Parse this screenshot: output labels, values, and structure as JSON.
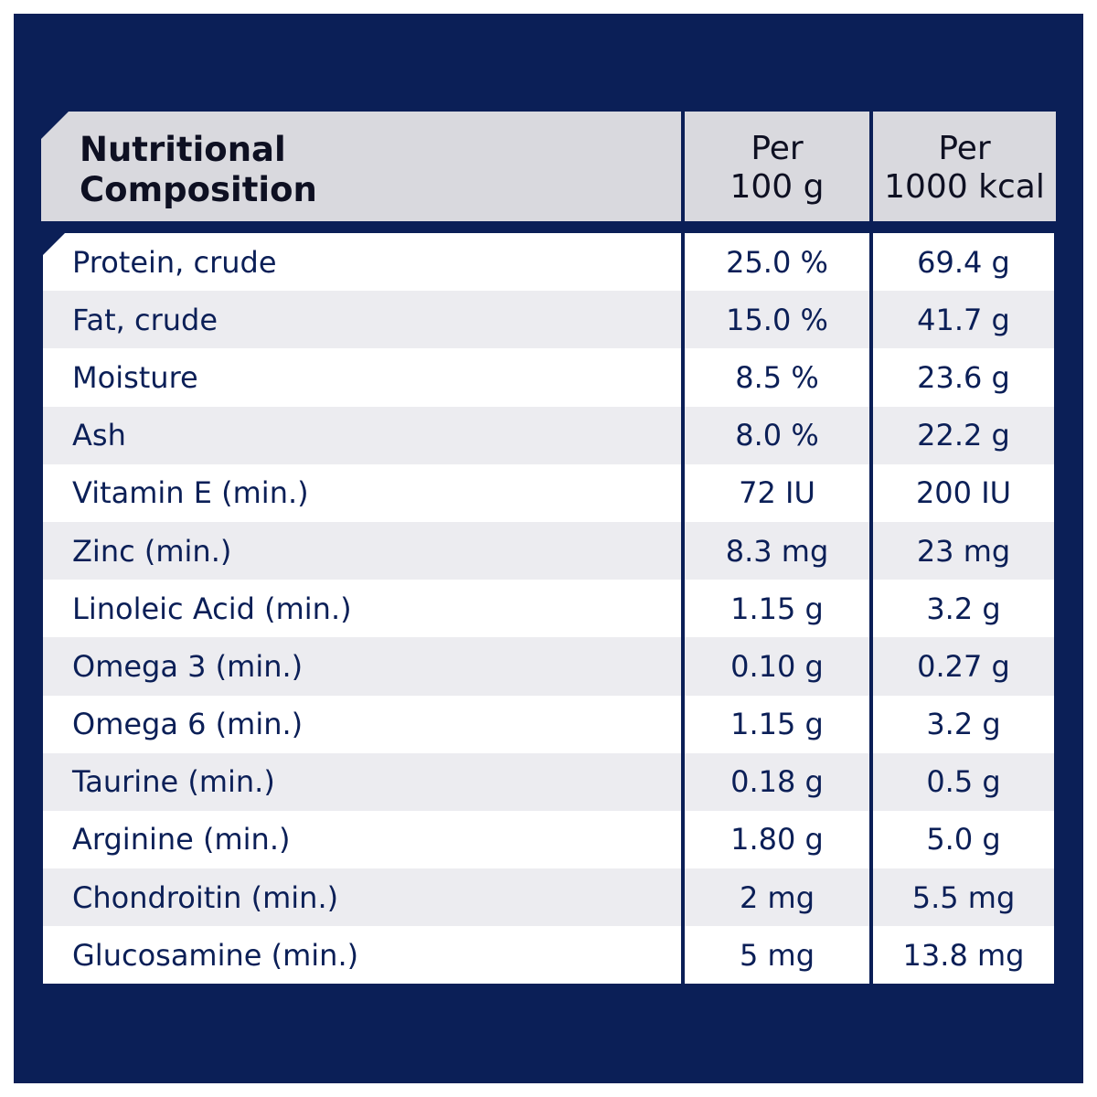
{
  "header": {
    "title_line1": "Nutritional",
    "title_line2": "Composition",
    "col2_line1": "Per",
    "col2_line2": "100 g",
    "col3_line1": "Per",
    "col3_line2": "1000 kcal"
  },
  "colors": {
    "background": "#0b1f57",
    "header": "#d9d9de",
    "row_alt": "#ececf0"
  },
  "rows": [
    {
      "name": "Protein, crude",
      "per100g": "25.0 %",
      "per1000kcal": "69.4 g"
    },
    {
      "name": "Fat, crude",
      "per100g": "15.0 %",
      "per1000kcal": "41.7 g"
    },
    {
      "name": "Moisture",
      "per100g": "8.5 %",
      "per1000kcal": "23.6 g"
    },
    {
      "name": "Ash",
      "per100g": "8.0 %",
      "per1000kcal": "22.2 g"
    },
    {
      "name": "Vitamin E (min.)",
      "per100g": "72 IU",
      "per1000kcal": "200 IU"
    },
    {
      "name": "Zinc (min.)",
      "per100g": "8.3 mg",
      "per1000kcal": "23 mg"
    },
    {
      "name": "Linoleic Acid (min.)",
      "per100g": "1.15 g",
      "per1000kcal": "3.2 g"
    },
    {
      "name": "Omega 3 (min.)",
      "per100g": "0.10 g",
      "per1000kcal": "0.27 g"
    },
    {
      "name": "Omega 6 (min.)",
      "per100g": "1.15 g",
      "per1000kcal": "3.2 g"
    },
    {
      "name": "Taurine (min.)",
      "per100g": "0.18 g",
      "per1000kcal": "0.5 g"
    },
    {
      "name": "Arginine (min.)",
      "per100g": "1.80 g",
      "per1000kcal": "5.0 g"
    },
    {
      "name": "Chondroitin (min.)",
      "per100g": "2 mg",
      "per1000kcal": "5.5 mg"
    },
    {
      "name": "Glucosamine (min.)",
      "per100g": "5 mg",
      "per1000kcal": "13.8 mg"
    }
  ]
}
